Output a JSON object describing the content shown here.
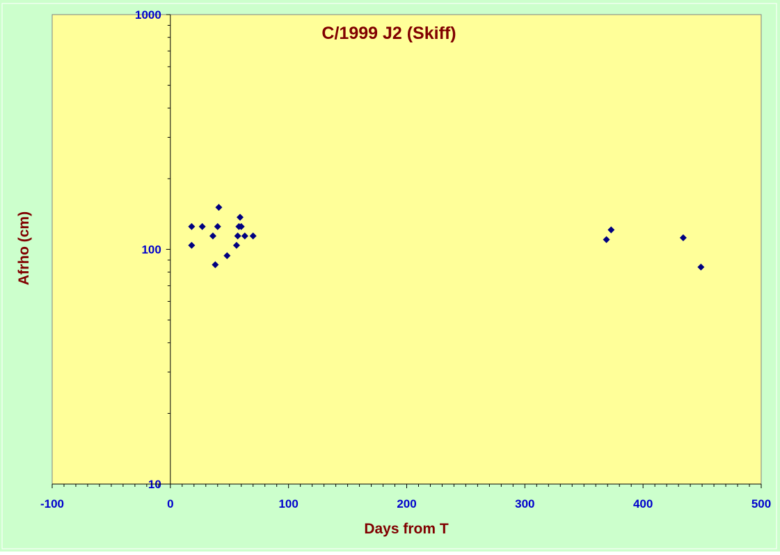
{
  "colors": {
    "outer_background": "#ccffcc",
    "plot_background": "#ffff99",
    "marker": "#000080",
    "tick_label": "#0000cc",
    "title_text": "#800000",
    "axis_label_text": "#800000",
    "axis_line": "#000000"
  },
  "chart_data": {
    "type": "scatter",
    "title": "C/1999 J2 (Skiff)",
    "xlabel": "Days from T",
    "ylabel": "Afrho (cm)",
    "xlim": [
      -100,
      500
    ],
    "ylim": [
      10,
      1000
    ],
    "y_scale": "log",
    "x_ticks": [
      "-100",
      "0",
      "100",
      "200",
      "300",
      "400",
      "500"
    ],
    "y_ticks": [
      "10",
      "100",
      "1000"
    ],
    "grid": false,
    "legend": "none",
    "marker": "diamond",
    "series": [
      {
        "x": [
          18,
          18,
          27,
          36,
          38,
          40,
          41,
          48,
          56,
          57,
          58,
          59,
          60,
          63,
          70,
          369,
          373,
          434,
          449
        ],
        "y": [
          104,
          125,
          125,
          114,
          86,
          125,
          151,
          94,
          104,
          114,
          125,
          137,
          125,
          114,
          114,
          110,
          121,
          112,
          84
        ]
      }
    ]
  }
}
